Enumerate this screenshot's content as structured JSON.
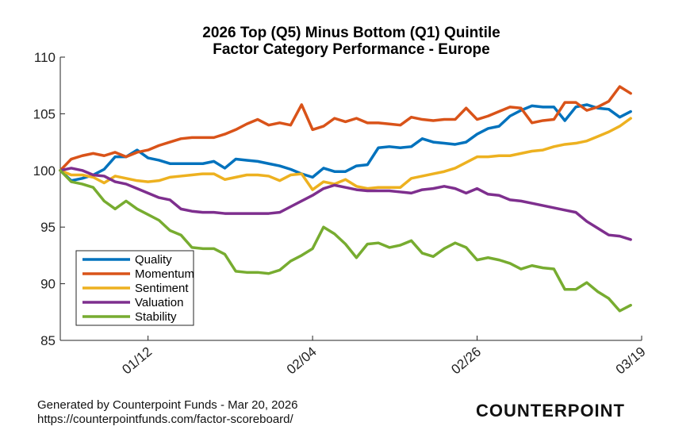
{
  "footer": {
    "generated": "Generated by Counterpoint Funds - Mar 20, 2026",
    "url": "https://counterpointfunds.com/factor-scoreboard/",
    "logo": "COUNTERPOINT"
  },
  "chart_data": {
    "type": "line",
    "title": "2026 Top (Q5) Minus Bottom (Q1) Quintile",
    "subtitle": "Factor Category Performance - Europe",
    "xlabel": "",
    "ylabel": "",
    "xlim": [
      0,
      53
    ],
    "ylim": [
      85,
      110
    ],
    "yticks": [
      85,
      90,
      95,
      100,
      105,
      110
    ],
    "xticks": [
      {
        "x": 8,
        "label": "01/12"
      },
      {
        "x": 23,
        "label": "02/04"
      },
      {
        "x": 38,
        "label": "02/26"
      },
      {
        "x": 53,
        "label": "03/19"
      }
    ],
    "grid": false,
    "legend_position": "lower-left",
    "series": [
      {
        "name": "Quality",
        "color": "#0072BD",
        "values": [
          100.0,
          99.1,
          99.3,
          99.6,
          100.1,
          101.2,
          101.2,
          101.8,
          101.1,
          100.9,
          100.6,
          100.6,
          100.6,
          100.6,
          100.8,
          100.2,
          101.0,
          100.9,
          100.8,
          100.6,
          100.4,
          100.1,
          99.7,
          99.4,
          100.2,
          99.9,
          99.9,
          100.4,
          100.5,
          102.0,
          102.1,
          102.0,
          102.1,
          102.8,
          102.5,
          102.4,
          102.3,
          102.5,
          103.2,
          103.7,
          103.9,
          104.8,
          105.3,
          105.7,
          105.6,
          105.6,
          104.4,
          105.6,
          105.8,
          105.5,
          105.4,
          104.7,
          105.2
        ]
      },
      {
        "name": "Momentum",
        "color": "#D95319",
        "values": [
          100.0,
          101.0,
          101.3,
          101.5,
          101.3,
          101.6,
          101.2,
          101.6,
          101.8,
          102.2,
          102.5,
          102.8,
          102.9,
          102.9,
          102.9,
          103.2,
          103.6,
          104.1,
          104.5,
          104.0,
          104.2,
          104.0,
          105.8,
          103.6,
          103.9,
          104.6,
          104.3,
          104.6,
          104.2,
          104.2,
          104.1,
          104.0,
          104.7,
          104.5,
          104.4,
          104.5,
          104.5,
          105.5,
          104.5,
          104.8,
          105.2,
          105.6,
          105.5,
          104.2,
          104.4,
          104.5,
          106.0,
          106.0,
          105.3,
          105.6,
          106.1,
          107.4,
          106.8
        ]
      },
      {
        "name": "Sentiment",
        "color": "#EDB120",
        "values": [
          100.0,
          99.6,
          99.6,
          99.4,
          98.9,
          99.5,
          99.3,
          99.1,
          99.0,
          99.1,
          99.4,
          99.5,
          99.6,
          99.7,
          99.7,
          99.2,
          99.4,
          99.6,
          99.6,
          99.5,
          99.1,
          99.6,
          99.7,
          98.3,
          99.0,
          98.8,
          99.2,
          98.6,
          98.4,
          98.5,
          98.5,
          98.5,
          99.3,
          99.5,
          99.7,
          99.9,
          100.2,
          100.7,
          101.2,
          101.2,
          101.3,
          101.3,
          101.5,
          101.7,
          101.8,
          102.1,
          102.3,
          102.4,
          102.6,
          103.0,
          103.4,
          103.9,
          104.6
        ]
      },
      {
        "name": "Valuation",
        "color": "#7E2F8E",
        "values": [
          100.0,
          100.2,
          100.0,
          99.6,
          99.5,
          99.0,
          98.8,
          98.4,
          98.0,
          97.6,
          97.4,
          96.6,
          96.4,
          96.3,
          96.3,
          96.2,
          96.2,
          96.2,
          96.2,
          96.2,
          96.3,
          96.8,
          97.3,
          97.8,
          98.4,
          98.7,
          98.5,
          98.3,
          98.2,
          98.2,
          98.2,
          98.1,
          98.0,
          98.3,
          98.4,
          98.6,
          98.4,
          98.0,
          98.4,
          97.9,
          97.8,
          97.4,
          97.3,
          97.1,
          96.9,
          96.7,
          96.5,
          96.3,
          95.5,
          94.9,
          94.3,
          94.2,
          93.9
        ]
      },
      {
        "name": "Stability",
        "color": "#77AC30",
        "values": [
          100.0,
          99.0,
          98.8,
          98.5,
          97.3,
          96.6,
          97.3,
          96.6,
          96.1,
          95.6,
          94.7,
          94.3,
          93.2,
          93.1,
          93.1,
          92.6,
          91.1,
          91.0,
          91.0,
          90.9,
          91.2,
          92.0,
          92.5,
          93.1,
          95.0,
          94.4,
          93.5,
          92.3,
          93.5,
          93.6,
          93.2,
          93.4,
          93.8,
          92.7,
          92.4,
          93.1,
          93.6,
          93.2,
          92.1,
          92.3,
          92.1,
          91.8,
          91.3,
          91.6,
          91.4,
          91.3,
          89.5,
          89.5,
          90.1,
          89.3,
          88.7,
          87.6,
          88.1
        ]
      }
    ]
  }
}
